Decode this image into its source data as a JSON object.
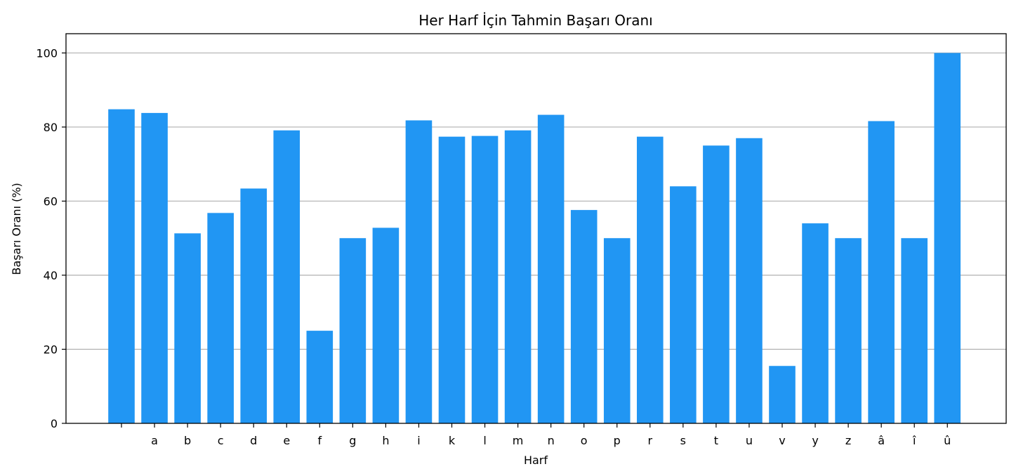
{
  "chart_data": {
    "type": "bar",
    "title": "Her Harf İçin Tahmin Başarı Oranı",
    "xlabel": "Harf",
    "ylabel": "Başarı Oranı (%)",
    "categories": [
      "",
      "a",
      "b",
      "c",
      "d",
      "e",
      "f",
      "g",
      "h",
      "i",
      "k",
      "l",
      "m",
      "n",
      "o",
      "p",
      "r",
      "s",
      "t",
      "u",
      "v",
      "y",
      "z",
      "â",
      "î",
      "û"
    ],
    "values": [
      84.8,
      83.8,
      51.3,
      56.8,
      63.4,
      79.1,
      25.0,
      50.0,
      52.8,
      81.8,
      77.4,
      77.6,
      79.1,
      83.3,
      57.6,
      50.0,
      77.4,
      64.0,
      75.0,
      77.0,
      15.5,
      54.0,
      50.0,
      81.6,
      50.0,
      100.0
    ],
    "ylim": [
      0,
      105.2
    ],
    "yticks": [
      0,
      20,
      40,
      60,
      80,
      100
    ],
    "grid": "y-major",
    "bar_color": "#2196f3"
  }
}
